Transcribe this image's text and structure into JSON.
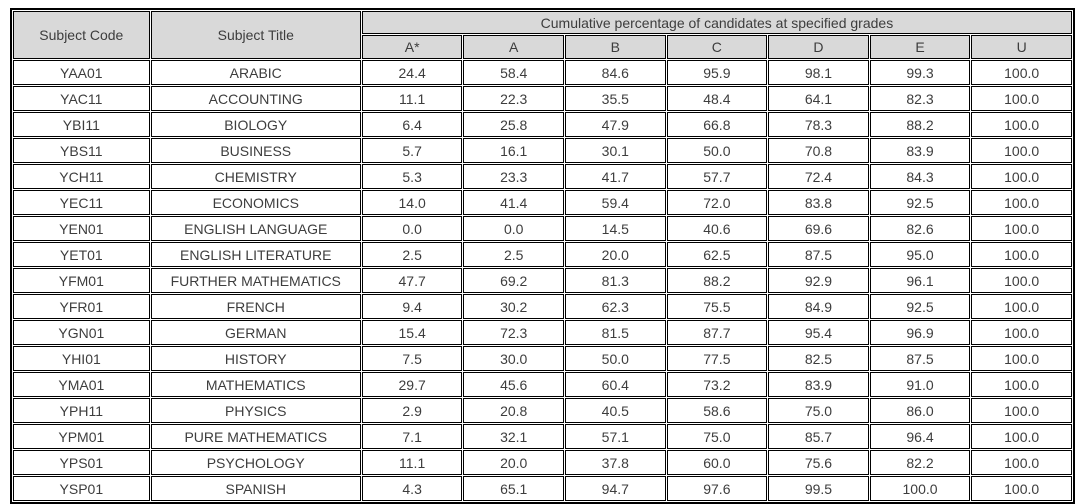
{
  "page": {
    "background": "#ffffff"
  },
  "table": {
    "header": {
      "subject_code_label": "Subject Code",
      "subject_title_label": "Subject Title",
      "grades_group_label": "Cumulative percentage of candidates at specified grades",
      "grade_columns": [
        "A*",
        "A",
        "B",
        "C",
        "D",
        "E",
        "U"
      ]
    },
    "style": {
      "header_bg": "#d9d9d9",
      "border_color": "#000000",
      "text_color": "#3d3d3d",
      "cell_bg": "#ffffff"
    }
  },
  "chart_data": {
    "type": "table",
    "title": "Cumulative percentage of candidates at specified grades",
    "columns": [
      "Subject Code",
      "Subject Title",
      "A*",
      "A",
      "B",
      "C",
      "D",
      "E",
      "U"
    ],
    "rows": [
      {
        "code": "YAA01",
        "title": "ARABIC",
        "values": [
          24.4,
          58.4,
          84.6,
          95.9,
          98.1,
          99.3,
          100.0
        ]
      },
      {
        "code": "YAC11",
        "title": "ACCOUNTING",
        "values": [
          11.1,
          22.3,
          35.5,
          48.4,
          64.1,
          82.3,
          100.0
        ]
      },
      {
        "code": "YBI11",
        "title": "BIOLOGY",
        "values": [
          6.4,
          25.8,
          47.9,
          66.8,
          78.3,
          88.2,
          100.0
        ]
      },
      {
        "code": "YBS11",
        "title": "BUSINESS",
        "values": [
          5.7,
          16.1,
          30.1,
          50.0,
          70.8,
          83.9,
          100.0
        ]
      },
      {
        "code": "YCH11",
        "title": "CHEMISTRY",
        "values": [
          5.3,
          23.3,
          41.7,
          57.7,
          72.4,
          84.3,
          100.0
        ]
      },
      {
        "code": "YEC11",
        "title": "ECONOMICS",
        "values": [
          14.0,
          41.4,
          59.4,
          72.0,
          83.8,
          92.5,
          100.0
        ]
      },
      {
        "code": "YEN01",
        "title": "ENGLISH LANGUAGE",
        "values": [
          0.0,
          0.0,
          14.5,
          40.6,
          69.6,
          82.6,
          100.0
        ]
      },
      {
        "code": "YET01",
        "title": "ENGLISH LITERATURE",
        "values": [
          2.5,
          2.5,
          20.0,
          62.5,
          87.5,
          95.0,
          100.0
        ]
      },
      {
        "code": "YFM01",
        "title": "FURTHER MATHEMATICS",
        "values": [
          47.7,
          69.2,
          81.3,
          88.2,
          92.9,
          96.1,
          100.0
        ]
      },
      {
        "code": "YFR01",
        "title": "FRENCH",
        "values": [
          9.4,
          30.2,
          62.3,
          75.5,
          84.9,
          92.5,
          100.0
        ]
      },
      {
        "code": "YGN01",
        "title": "GERMAN",
        "values": [
          15.4,
          72.3,
          81.5,
          87.7,
          95.4,
          96.9,
          100.0
        ]
      },
      {
        "code": "YHI01",
        "title": "HISTORY",
        "values": [
          7.5,
          30.0,
          50.0,
          77.5,
          82.5,
          87.5,
          100.0
        ]
      },
      {
        "code": "YMA01",
        "title": "MATHEMATICS",
        "values": [
          29.7,
          45.6,
          60.4,
          73.2,
          83.9,
          91.0,
          100.0
        ]
      },
      {
        "code": "YPH11",
        "title": "PHYSICS",
        "values": [
          2.9,
          20.8,
          40.5,
          58.6,
          75.0,
          86.0,
          100.0
        ]
      },
      {
        "code": "YPM01",
        "title": "PURE MATHEMATICS",
        "values": [
          7.1,
          32.1,
          57.1,
          75.0,
          85.7,
          96.4,
          100.0
        ]
      },
      {
        "code": "YPS01",
        "title": "PSYCHOLOGY",
        "values": [
          11.1,
          20.0,
          37.8,
          60.0,
          75.6,
          82.2,
          100.0
        ]
      },
      {
        "code": "YSP01",
        "title": "SPANISH",
        "values": [
          4.3,
          65.1,
          94.7,
          97.6,
          99.5,
          100.0,
          100.0
        ]
      }
    ],
    "value_format": "one_decimal_percent_cumulative"
  }
}
